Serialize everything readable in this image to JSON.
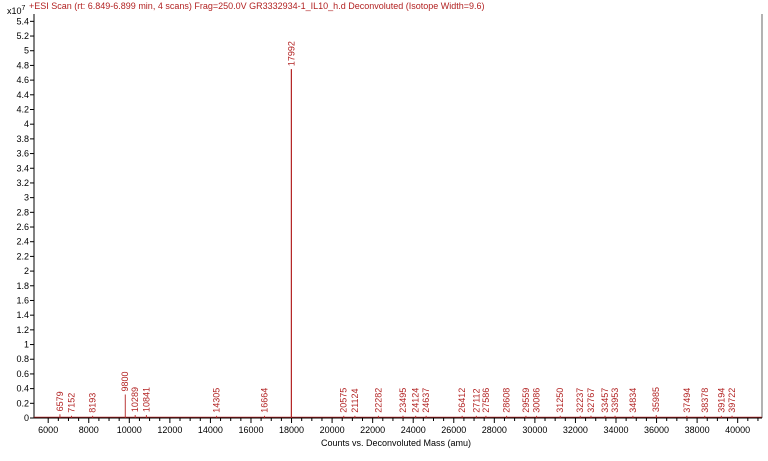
{
  "chart_data": {
    "type": "line",
    "title": "+ESI Scan (rt: 6.849-6.899 min, 4 scans) Frag=250.0V GR3332934-1_IL10_h.d  Deconvoluted (Isotope Width=9.6)",
    "y_multiplier_base": "x10",
    "y_multiplier_exp": "7",
    "xlabel": "Counts vs. Deconvoluted Mass (amu)",
    "ylabel": "",
    "xlim": [
      5300,
      41200
    ],
    "ylim": [
      0,
      5.5
    ],
    "x_ticks": [
      6000,
      8000,
      10000,
      12000,
      14000,
      16000,
      18000,
      20000,
      22000,
      24000,
      26000,
      28000,
      30000,
      32000,
      34000,
      36000,
      38000,
      40000
    ],
    "x_tick_labels": [
      "6000",
      "8000",
      "10000",
      "12000",
      "14000",
      "16000",
      "18000",
      "20000",
      "22000",
      "24000",
      "26000",
      "28000",
      "30000",
      "32000",
      "34000",
      "36000",
      "38000",
      "40000"
    ],
    "y_ticks": [
      0,
      0.2,
      0.4,
      0.6,
      0.8,
      1,
      1.2,
      1.4,
      1.6,
      1.8,
      2,
      2.2,
      2.4,
      2.6,
      2.8,
      3,
      3.2,
      3.4,
      3.6,
      3.8,
      4,
      4.2,
      4.4,
      4.6,
      4.8,
      5,
      5.2,
      5.4
    ],
    "y_tick_labels": [
      "0",
      "0.2",
      "0.4",
      "0.6",
      "0.8",
      "1",
      "1.2",
      "1.4",
      "1.6",
      "1.8",
      "2",
      "2.2",
      "2.4",
      "2.6",
      "2.8",
      "3",
      "3.2",
      "3.4",
      "3.6",
      "3.8",
      "4",
      "4.2",
      "4.4",
      "4.6",
      "4.8",
      "5",
      "5.2",
      "5.4"
    ],
    "series_color": "#b22222",
    "peaks": [
      {
        "x": 6579,
        "y": 0.05,
        "label": "6579"
      },
      {
        "x": 7152,
        "y": 0.03,
        "label": "7152"
      },
      {
        "x": 8193,
        "y": 0.03,
        "label": "8193"
      },
      {
        "x": 9800,
        "y": 0.32,
        "label": "9800"
      },
      {
        "x": 10289,
        "y": 0.04,
        "label": "10289"
      },
      {
        "x": 10841,
        "y": 0.04,
        "label": "10841"
      },
      {
        "x": 14305,
        "y": 0.03,
        "label": "14305"
      },
      {
        "x": 16664,
        "y": 0.03,
        "label": "16664"
      },
      {
        "x": 17992,
        "y": 4.75,
        "label": "17992"
      },
      {
        "x": 20575,
        "y": 0.03,
        "label": "20575"
      },
      {
        "x": 21124,
        "y": 0.03,
        "label": "21124"
      },
      {
        "x": 22282,
        "y": 0.03,
        "label": "22282"
      },
      {
        "x": 23495,
        "y": 0.03,
        "label": "23495"
      },
      {
        "x": 24124,
        "y": 0.03,
        "label": "24124"
      },
      {
        "x": 24637,
        "y": 0.03,
        "label": "24637"
      },
      {
        "x": 26412,
        "y": 0.03,
        "label": "26412"
      },
      {
        "x": 27112,
        "y": 0.03,
        "label": "27112"
      },
      {
        "x": 27586,
        "y": 0.03,
        "label": "27586"
      },
      {
        "x": 28608,
        "y": 0.03,
        "label": "28608"
      },
      {
        "x": 29559,
        "y": 0.03,
        "label": "29559"
      },
      {
        "x": 30086,
        "y": 0.03,
        "label": "30086"
      },
      {
        "x": 31250,
        "y": 0.03,
        "label": "31250"
      },
      {
        "x": 32237,
        "y": 0.03,
        "label": "32237"
      },
      {
        "x": 32767,
        "y": 0.03,
        "label": "32767"
      },
      {
        "x": 33457,
        "y": 0.03,
        "label": "33457"
      },
      {
        "x": 33953,
        "y": 0.03,
        "label": "33953"
      },
      {
        "x": 34834,
        "y": 0.03,
        "label": "34834"
      },
      {
        "x": 35985,
        "y": 0.04,
        "label": "35985"
      },
      {
        "x": 37494,
        "y": 0.03,
        "label": "37494"
      },
      {
        "x": 38378,
        "y": 0.03,
        "label": "38378"
      },
      {
        "x": 39194,
        "y": 0.03,
        "label": "39194"
      },
      {
        "x": 39722,
        "y": 0.03,
        "label": "39722"
      }
    ],
    "grid": false,
    "legend": "none"
  }
}
